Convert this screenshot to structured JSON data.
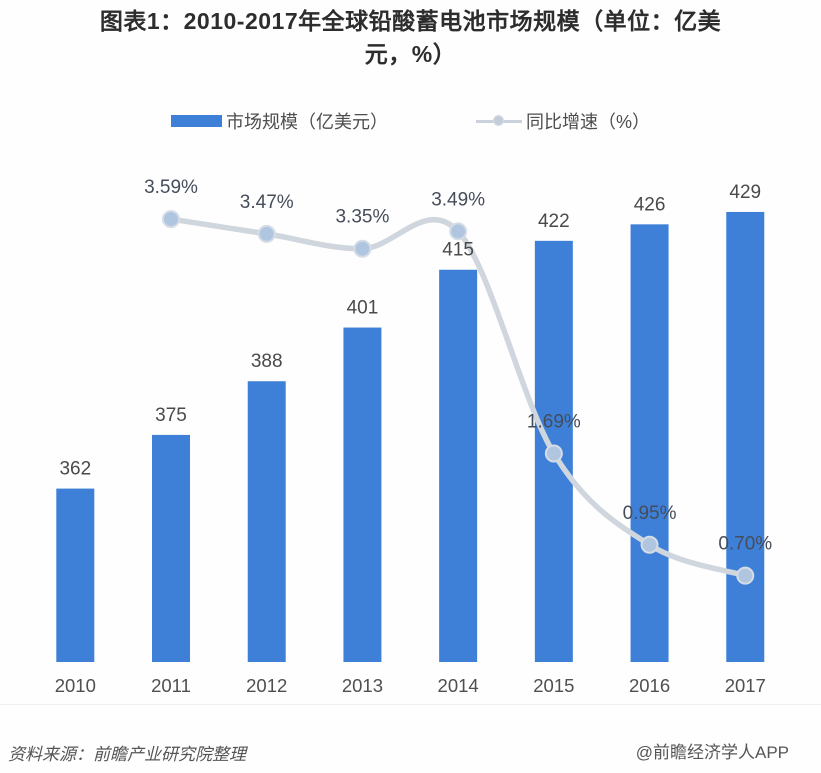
{
  "title": "图表1：2010-2017年全球铅酸蓄电池市场规模（单位：亿美元，%）",
  "legend": {
    "bar_label": "市场规模（亿美元）",
    "line_label": "同比增速（%）"
  },
  "footer": {
    "source": "资料来源：前瞻产业研究院整理",
    "credit": "@前瞻经济学人APP"
  },
  "colors": {
    "bar": "#3e80d8",
    "line": "#d0d6de",
    "marker_fill": "#b0c6e0",
    "marker_edge": "#d5dce5",
    "value_label": "#4a4a4a",
    "pct_label": "#454d5a",
    "axis_label": "#4f4f4f",
    "title": "#2d2d2d",
    "footer": "#555555"
  },
  "chart_data": {
    "type": "bar",
    "subtype": "bar-with-line-overlay",
    "title": "图表1：2010-2017年全球铅酸蓄电池市场规模（单位：亿美元，%）",
    "categories": [
      "2010",
      "2011",
      "2012",
      "2013",
      "2014",
      "2015",
      "2016",
      "2017"
    ],
    "series": [
      {
        "name": "市场规模（亿美元）",
        "type": "bar",
        "axis": "primary",
        "values": [
          362,
          375,
          388,
          401,
          415,
          422,
          426,
          429
        ],
        "labels": [
          "362",
          "375",
          "388",
          "401",
          "415",
          "422",
          "426",
          "429"
        ]
      },
      {
        "name": "同比增速（%）",
        "type": "line",
        "axis": "secondary",
        "values": [
          null,
          3.59,
          3.47,
          3.35,
          3.49,
          1.69,
          0.95,
          0.7
        ],
        "labels": [
          "",
          "3.59%",
          "3.47%",
          "3.35%",
          "3.49%",
          "1.69%",
          "0.95%",
          "0.70%"
        ]
      }
    ],
    "xlabel": "",
    "ylabel": "",
    "ylim": [
      320,
      444
    ],
    "y2lim": [
      0,
      4.15
    ],
    "grid": false,
    "axes_visible": false,
    "legend_position": "top",
    "data_labels_shown": true
  }
}
